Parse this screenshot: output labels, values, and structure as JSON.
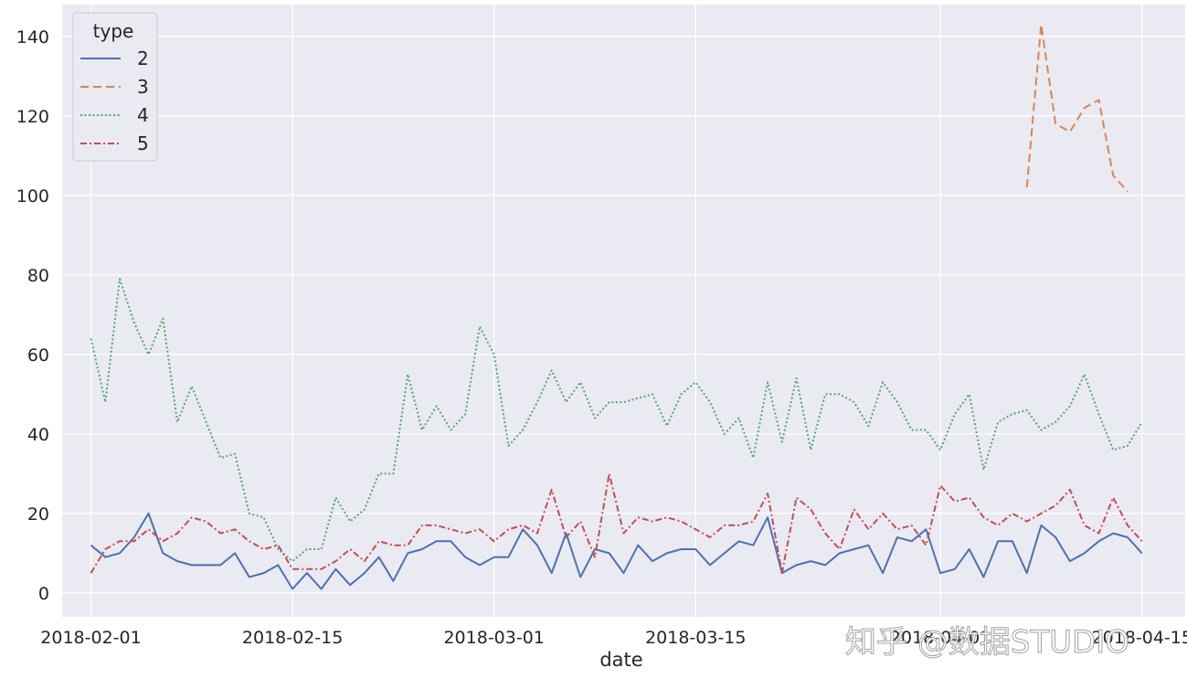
{
  "watermark": "知乎 @数据STUDIO",
  "chart_data": {
    "type": "line",
    "xlabel": "date",
    "ylabel": "",
    "ylim": [
      -6,
      148
    ],
    "xlim": [
      "2018-01-30",
      "2018-04-18"
    ],
    "x_ticks": [
      "2018-02-01",
      "2018-02-15",
      "2018-03-01",
      "2018-03-15",
      "2018-04-01",
      "2018-04-15"
    ],
    "y_ticks": [
      0,
      20,
      40,
      60,
      80,
      100,
      120,
      140
    ],
    "grid": true,
    "legend": {
      "title": "type",
      "placement": "top-left"
    },
    "series": [
      {
        "name": "2",
        "color": "#4c72b0",
        "dash": "solid",
        "start": "2018-02-01",
        "values": [
          12,
          9,
          10,
          14,
          20,
          10,
          8,
          7,
          7,
          7,
          10,
          4,
          5,
          7,
          1,
          5,
          1,
          6,
          2,
          5,
          9,
          3,
          10,
          11,
          13,
          13,
          9,
          7,
          9,
          9,
          16,
          12,
          5,
          15,
          4,
          11,
          10,
          5,
          12,
          8,
          10,
          11,
          11,
          7,
          10,
          13,
          12,
          19,
          5,
          7,
          8,
          7,
          10,
          11,
          12,
          5,
          14,
          13,
          16,
          5,
          6,
          11,
          4,
          13,
          13,
          5,
          17,
          14,
          8,
          10,
          13,
          15,
          14,
          10
        ]
      },
      {
        "name": "3",
        "color": "#dd8452",
        "dash": "dashed",
        "start": "2018-04-07",
        "values": [
          102,
          143,
          118,
          116,
          122,
          124,
          105,
          101
        ]
      },
      {
        "name": "4",
        "color": "#55a868",
        "dash": "dotted",
        "start": "2018-02-01",
        "values": [
          64,
          48,
          79,
          68,
          60,
          69,
          43,
          52,
          43,
          34,
          35,
          20,
          19,
          11,
          8,
          11,
          11,
          24,
          18,
          21,
          30,
          30,
          55,
          41,
          47,
          41,
          45,
          67,
          60,
          37,
          41,
          48,
          56,
          48,
          53,
          44,
          48,
          48,
          49,
          50,
          42,
          50,
          53,
          48,
          40,
          44,
          34,
          53,
          38,
          54,
          36,
          50,
          50,
          48,
          42,
          53,
          48,
          41,
          41,
          36,
          45,
          50,
          31,
          43,
          45,
          46,
          41,
          43,
          47,
          55,
          45,
          36,
          37,
          43
        ]
      },
      {
        "name": "5",
        "color": "#c44e52",
        "dash": "dashdot",
        "start": "2018-02-01",
        "values": [
          5,
          11,
          13,
          13,
          16,
          13,
          15,
          19,
          18,
          15,
          16,
          13,
          11,
          12,
          6,
          6,
          6,
          8,
          11,
          8,
          13,
          12,
          12,
          17,
          17,
          16,
          15,
          16,
          13,
          16,
          17,
          15,
          26,
          14,
          18,
          9,
          30,
          15,
          19,
          18,
          19,
          18,
          16,
          14,
          17,
          17,
          18,
          25,
          5,
          24,
          21,
          15,
          11,
          21,
          16,
          20,
          16,
          17,
          12,
          27,
          23,
          24,
          19,
          17,
          20,
          18,
          20,
          22,
          26,
          17,
          15,
          24,
          17,
          13
        ]
      }
    ]
  }
}
